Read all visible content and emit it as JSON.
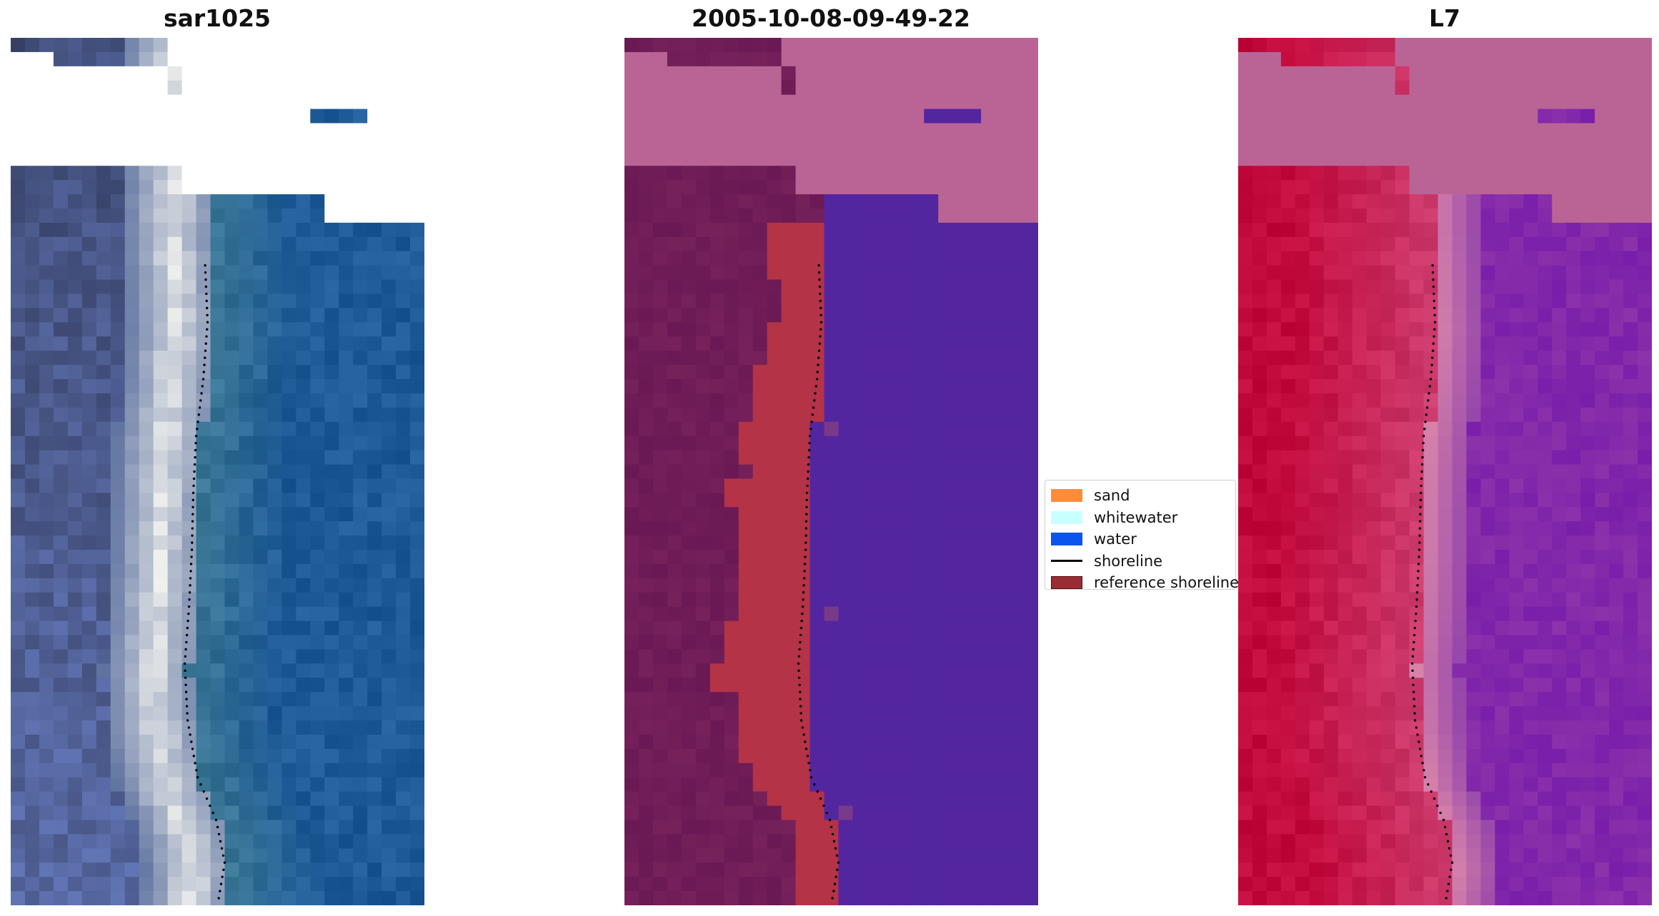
{
  "panels": [
    {
      "id": "rgb",
      "title": "sar1025"
    },
    {
      "id": "classified",
      "title": "2005-10-08-09-49-22"
    },
    {
      "id": "mndwi",
      "title": "L7"
    }
  ],
  "legend": {
    "items": [
      {
        "label": "sand",
        "kind": "patch",
        "color": "#ff8c3a"
      },
      {
        "label": "whitewater",
        "kind": "patch",
        "color": "#c8ffff"
      },
      {
        "label": "water",
        "kind": "patch",
        "color": "#0a55ee"
      },
      {
        "label": "shoreline",
        "kind": "line",
        "color": "#000000"
      },
      {
        "label": "reference shoreline",
        "kind": "patch",
        "color": "#9a2c33",
        "edge": "#5a0d12"
      }
    ]
  },
  "colors": {
    "nodata_rgb": "#ffffff",
    "nodata_classified": "#ba6496",
    "classified_land": "#6b1c52",
    "classified_sand": "#b43347",
    "classified_water": "#5326a0",
    "shoreline": "#000000"
  }
}
